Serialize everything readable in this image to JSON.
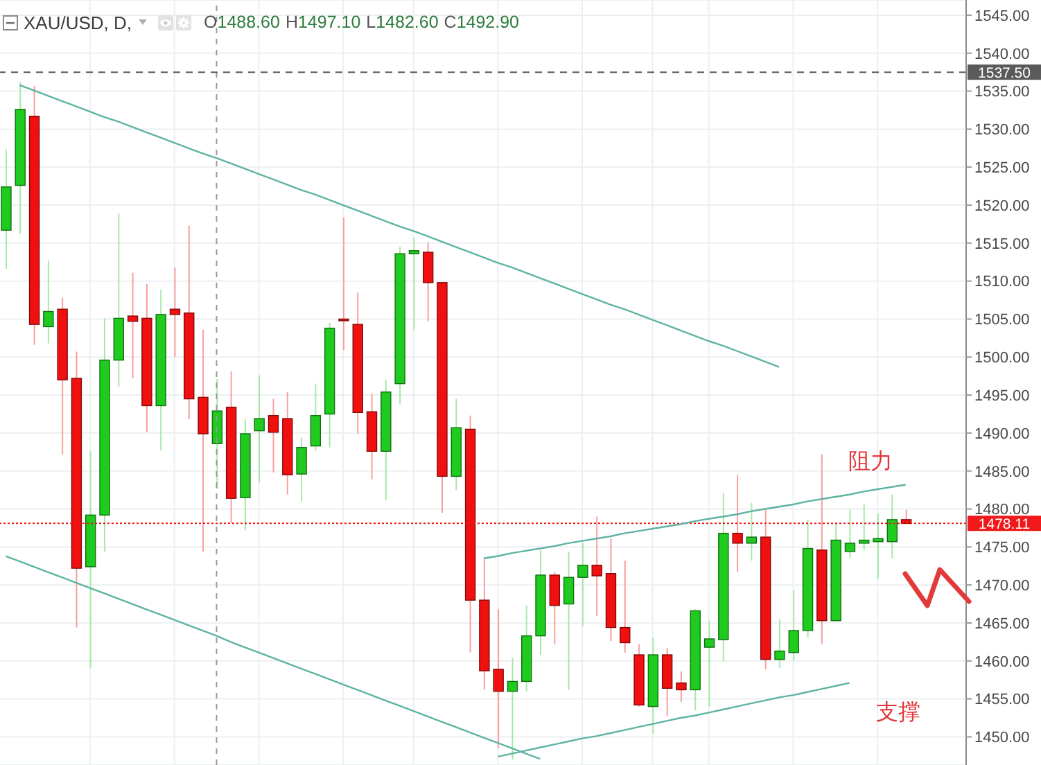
{
  "chart_data": {
    "type": "candlestick",
    "title": "XAU/USD, D,",
    "subtitle": "O1488.60 H1497.10 L1482.60 C1492.90",
    "categories": [
      null,
      null,
      null,
      null,
      null,
      null,
      null,
      null,
      null,
      null,
      null,
      null,
      null,
      null,
      null,
      null,
      null,
      null,
      null,
      null,
      null,
      null,
      null,
      null,
      null,
      null,
      null,
      null,
      null,
      null,
      null,
      null,
      null,
      null,
      null,
      null,
      null,
      null,
      null,
      null,
      null,
      null,
      null,
      null,
      null,
      null,
      null,
      null,
      null,
      null,
      null,
      null,
      null,
      null,
      null,
      null,
      null,
      null,
      null,
      null,
      null,
      null,
      null,
      null,
      null
    ],
    "ohlc": [
      [
        1516.7,
        1527.3,
        1511.6,
        1522.4
      ],
      [
        1522.6,
        1536.2,
        1516.2,
        1532.6
      ],
      [
        1531.7,
        1535.7,
        1501.6,
        1504.3
      ],
      [
        1504.0,
        1512.7,
        1501.8,
        1506.0
      ],
      [
        1506.3,
        1507.8,
        1487.2,
        1497.0
      ],
      [
        1497.2,
        1500.7,
        1464.4,
        1472.2
      ],
      [
        1472.4,
        1487.6,
        1459.1,
        1479.2
      ],
      [
        1479.2,
        1505.1,
        1474.4,
        1499.6
      ],
      [
        1499.6,
        1518.9,
        1496.1,
        1505.1
      ],
      [
        1505.4,
        1511.1,
        1497.2,
        1504.7
      ],
      [
        1505.1,
        1509.6,
        1490.1,
        1493.6
      ],
      [
        1493.6,
        1508.9,
        1487.7,
        1505.6
      ],
      [
        1506.3,
        1511.8,
        1500.0,
        1505.6
      ],
      [
        1505.8,
        1517.3,
        1491.8,
        1494.5
      ],
      [
        1494.7,
        1503.6,
        1474.4,
        1489.9
      ],
      [
        1488.6,
        1497.1,
        1482.6,
        1492.9
      ],
      [
        1493.4,
        1498.1,
        1478.1,
        1481.4
      ],
      [
        1481.5,
        1491.8,
        1477.2,
        1489.9
      ],
      [
        1490.3,
        1497.6,
        1483.5,
        1491.9
      ],
      [
        1492.3,
        1494.5,
        1484.8,
        1490.1
      ],
      [
        1491.9,
        1495.4,
        1481.9,
        1484.5
      ],
      [
        1484.6,
        1489.4,
        1481.0,
        1488.1
      ],
      [
        1488.3,
        1496.5,
        1487.7,
        1492.3
      ],
      [
        1492.5,
        1504.5,
        1488.1,
        1503.8
      ],
      [
        1505.0,
        1518.4,
        1500.9,
        1504.8
      ],
      [
        1504.3,
        1508.5,
        1489.9,
        1492.7
      ],
      [
        1492.8,
        1495.2,
        1483.9,
        1487.6
      ],
      [
        1487.6,
        1497.0,
        1481.2,
        1495.4
      ],
      [
        1496.5,
        1514.5,
        1493.8,
        1513.6
      ],
      [
        1513.6,
        1515.8,
        1503.6,
        1514.0
      ],
      [
        1513.8,
        1515.1,
        1504.7,
        1509.8
      ],
      [
        1509.8,
        1509.8,
        1479.5,
        1484.3
      ],
      [
        1484.3,
        1494.5,
        1482.5,
        1490.7
      ],
      [
        1490.5,
        1492.3,
        1461.1,
        1468.0
      ],
      [
        1468.0,
        1473.4,
        1456.2,
        1458.7
      ],
      [
        1458.9,
        1466.8,
        1448.5,
        1456.0
      ],
      [
        1456.0,
        1460.4,
        1447.0,
        1457.3
      ],
      [
        1457.3,
        1467.3,
        1456.0,
        1463.3
      ],
      [
        1463.3,
        1474.6,
        1460.8,
        1471.3
      ],
      [
        1471.3,
        1471.7,
        1462.2,
        1467.3
      ],
      [
        1467.5,
        1474.4,
        1456.2,
        1471.0
      ],
      [
        1471.0,
        1475.5,
        1464.6,
        1472.6
      ],
      [
        1472.6,
        1479.0,
        1465.9,
        1471.2
      ],
      [
        1471.5,
        1476.1,
        1462.6,
        1464.4
      ],
      [
        1464.4,
        1473.2,
        1461.1,
        1462.4
      ],
      [
        1460.8,
        1462.2,
        1454.0,
        1454.2
      ],
      [
        1454.0,
        1463.1,
        1450.4,
        1460.8
      ],
      [
        1460.8,
        1461.7,
        1452.7,
        1456.4
      ],
      [
        1457.1,
        1458.6,
        1454.6,
        1456.2
      ],
      [
        1456.2,
        1466.8,
        1453.5,
        1466.6
      ],
      [
        1461.8,
        1465.3,
        1454.0,
        1462.9
      ],
      [
        1462.8,
        1482.1,
        1460.0,
        1476.8
      ],
      [
        1476.8,
        1484.5,
        1471.7,
        1475.5
      ],
      [
        1475.5,
        1480.8,
        1473.2,
        1476.3
      ],
      [
        1476.3,
        1479.9,
        1458.9,
        1460.2
      ],
      [
        1460.2,
        1465.5,
        1459.1,
        1461.3
      ],
      [
        1461.1,
        1469.3,
        1460.0,
        1464.0
      ],
      [
        1464.0,
        1478.6,
        1463.1,
        1474.8
      ],
      [
        1474.6,
        1487.2,
        1462.2,
        1465.3
      ],
      [
        1465.3,
        1478.1,
        1465.3,
        1475.9
      ],
      [
        1474.4,
        1479.9,
        1473.5,
        1475.5
      ],
      [
        1475.5,
        1480.6,
        1474.6,
        1475.9
      ],
      [
        1475.7,
        1479.4,
        1470.8,
        1476.1
      ],
      [
        1475.7,
        1481.9,
        1473.5,
        1478.6
      ],
      [
        1478.6,
        1479.9,
        1478.1,
        1478.1
      ]
    ],
    "colors": [
      "#1ecb1e",
      "#1ecb1e",
      "#f01010",
      "#1ecb1e",
      "#f01010",
      "#f01010",
      "#1ecb1e",
      "#1ecb1e",
      "#1ecb1e",
      "#f01010",
      "#f01010",
      "#1ecb1e",
      "#f01010",
      "#f01010",
      "#f01010",
      "#1ecb1e",
      "#f01010",
      "#1ecb1e",
      "#1ecb1e",
      "#f01010",
      "#f01010",
      "#1ecb1e",
      "#1ecb1e",
      "#1ecb1e",
      "#f01010",
      "#f01010",
      "#f01010",
      "#1ecb1e",
      "#1ecb1e",
      "#1ecb1e",
      "#f01010",
      "#f01010",
      "#1ecb1e",
      "#f01010",
      "#f01010",
      "#f01010",
      "#1ecb1e",
      "#1ecb1e",
      "#1ecb1e",
      "#f01010",
      "#1ecb1e",
      "#1ecb1e",
      "#f01010",
      "#f01010",
      "#f01010",
      "#f01010",
      "#1ecb1e",
      "#f01010",
      "#f01010",
      "#1ecb1e",
      "#1ecb1e",
      "#1ecb1e",
      "#f01010",
      "#1ecb1e",
      "#f01010",
      "#1ecb1e",
      "#1ecb1e",
      "#1ecb1e",
      "#f01010",
      "#1ecb1e",
      "#1ecb1e",
      "#1ecb1e",
      "#1ecb1e",
      "#1ecb1e",
      "#f01010"
    ],
    "series": [
      {
        "type": "line",
        "color": "#5fb3a3",
        "values": [
          null,
          1535.8,
          1535.1,
          1534.4,
          1533.7,
          1533.0,
          1532.3,
          1531.6,
          1531.0,
          1530.3,
          1529.6,
          1528.9,
          1528.2,
          1527.5,
          1526.8,
          1526.2,
          1525.5,
          1524.8,
          1524.1,
          1523.4,
          1522.7,
          1522.0,
          1521.4,
          1520.7,
          1520.0,
          1519.3,
          1518.6,
          1517.9,
          1517.2,
          1516.6,
          1515.9,
          1515.2,
          1514.5,
          1513.8,
          1513.1,
          1512.4,
          1511.8,
          1511.1,
          1510.4,
          1509.7,
          1509.0,
          1508.3,
          1507.6,
          1506.9,
          1506.3,
          1505.6,
          1504.9,
          1504.2,
          1503.5,
          1502.8,
          1502.1,
          1501.5,
          1500.8,
          1500.1,
          1499.4,
          1498.7,
          null,
          null,
          null,
          null,
          null,
          null,
          null,
          null,
          null
        ]
      },
      {
        "type": "line",
        "color": "#5fb3a3",
        "values": [
          1473.8,
          1473.1,
          1472.4,
          1471.7,
          1471.0,
          1470.3,
          1469.6,
          1468.9,
          1468.2,
          1467.5,
          1466.8,
          1466.1,
          1465.4,
          1464.7,
          1464.0,
          1463.3,
          1462.5,
          1461.8,
          1461.1,
          1460.4,
          1459.7,
          1459.0,
          1458.3,
          1457.6,
          1456.9,
          1456.2,
          1455.5,
          1454.8,
          1454.1,
          1453.4,
          1452.7,
          1452.0,
          1451.3,
          1450.6,
          1449.9,
          1449.2,
          1448.5,
          1447.8,
          1447.1,
          null,
          null,
          null,
          null,
          null,
          null,
          null,
          null,
          null,
          null,
          null,
          null,
          null,
          null,
          null,
          null,
          null,
          null,
          null,
          null,
          null,
          null,
          null,
          null,
          null,
          null
        ]
      },
      {
        "type": "line",
        "color": "#5fb3a3",
        "values": [
          null,
          null,
          null,
          null,
          null,
          null,
          null,
          null,
          null,
          null,
          null,
          null,
          null,
          null,
          null,
          null,
          null,
          null,
          null,
          null,
          null,
          null,
          null,
          null,
          null,
          null,
          null,
          null,
          null,
          null,
          null,
          null,
          null,
          null,
          1473.5,
          1473.8,
          1474.2,
          1474.5,
          1474.8,
          1475.1,
          1475.5,
          1475.8,
          1476.1,
          1476.4,
          1476.8,
          1477.1,
          1477.4,
          1477.7,
          1478.0,
          1478.4,
          1478.7,
          1479.0,
          1479.3,
          1479.7,
          1480.0,
          1480.3,
          1480.6,
          1481.0,
          1481.3,
          1481.6,
          1481.9,
          1482.3,
          1482.6,
          1482.9,
          1483.2
        ]
      },
      {
        "type": "line",
        "color": "#5fb3a3",
        "values": [
          null,
          null,
          null,
          null,
          null,
          null,
          null,
          null,
          null,
          null,
          null,
          null,
          null,
          null,
          null,
          null,
          null,
          null,
          null,
          null,
          null,
          null,
          null,
          null,
          null,
          null,
          null,
          null,
          null,
          null,
          null,
          null,
          null,
          null,
          null,
          1447.4,
          1447.8,
          1448.2,
          1448.6,
          1449.0,
          1449.4,
          1449.8,
          1450.1,
          1450.5,
          1450.9,
          1451.3,
          1451.7,
          1452.1,
          1452.5,
          1452.8,
          1453.2,
          1453.6,
          1454.0,
          1454.4,
          1454.8,
          1455.2,
          1455.5,
          1455.9,
          1456.3,
          1456.7,
          1457.1,
          null,
          null,
          null,
          null
        ]
      }
    ],
    "ylim": [
      1446.3,
      1547.0
    ],
    "yticks": [
      {
        "value": 1450,
        "label": "1450.00"
      },
      {
        "value": 1455,
        "label": "1455.00"
      },
      {
        "value": 1460,
        "label": "1460.00"
      },
      {
        "value": 1465,
        "label": "1465.00"
      },
      {
        "value": 1470,
        "label": "1470.00"
      },
      {
        "value": 1475,
        "label": "1475.00"
      },
      {
        "value": 1480,
        "label": "1480.00"
      },
      {
        "value": 1485,
        "label": "1485.00"
      },
      {
        "value": 1490,
        "label": "1490.00"
      },
      {
        "value": 1495,
        "label": "1495.00"
      },
      {
        "value": 1500,
        "label": "1500.00"
      },
      {
        "value": 1505,
        "label": "1505.00"
      },
      {
        "value": 1510,
        "label": "1510.00"
      },
      {
        "value": 1515,
        "label": "1515.00"
      },
      {
        "value": 1520,
        "label": "1520.00"
      },
      {
        "value": 1525,
        "label": "1525.00"
      },
      {
        "value": 1530,
        "label": "1530.00"
      },
      {
        "value": 1535,
        "label": "1535.00"
      },
      {
        "value": 1540,
        "label": "1540.00"
      },
      {
        "value": 1545,
        "label": "1545.00"
      }
    ],
    "ref_lines": [
      {
        "axis": "y",
        "value": 1537.5,
        "label": "1537.50",
        "color": "#5a5a5a",
        "line_style": "dashed"
      },
      {
        "axis": "y",
        "value": 1478.11,
        "label": "1478.11",
        "color": "#f01818",
        "line_style": "dotted"
      }
    ],
    "annotations": [
      "阻力",
      "支撑"
    ],
    "grid": true,
    "tick_labels": "y"
  }
}
